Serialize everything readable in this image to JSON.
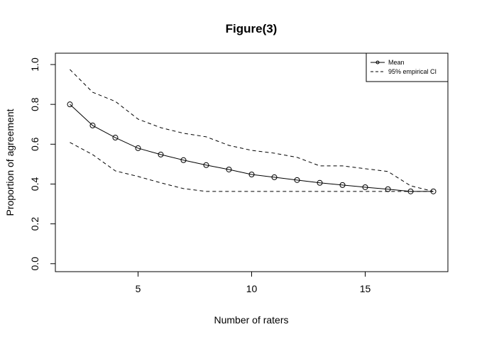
{
  "chart_data": {
    "type": "line",
    "title": "Figure(3)",
    "x_label": "Number of raters",
    "y_label": "Proportion of agreement",
    "x": [
      2,
      3,
      4,
      5,
      6,
      7,
      8,
      9,
      10,
      11,
      12,
      13,
      14,
      15,
      16,
      17,
      18
    ],
    "series": [
      {
        "name": "Mean",
        "color": "#000000",
        "style": "solid",
        "markers": true,
        "values": [
          0.8,
          0.694,
          0.633,
          0.58,
          0.548,
          0.52,
          0.495,
          0.473,
          0.448,
          0.434,
          0.42,
          0.406,
          0.395,
          0.384,
          0.374,
          0.363,
          0.363
        ]
      },
      {
        "name": "95% empirical CI",
        "color": "#000000",
        "style": "dashed",
        "markers": false,
        "upper": [
          0.975,
          0.861,
          0.815,
          0.726,
          0.683,
          0.655,
          0.637,
          0.594,
          0.569,
          0.555,
          0.534,
          0.491,
          0.491,
          0.477,
          0.463,
          0.391,
          0.363
        ],
        "lower": [
          0.609,
          0.548,
          0.466,
          0.438,
          0.406,
          0.377,
          0.363,
          0.363,
          0.363,
          0.363,
          0.363,
          0.363,
          0.363,
          0.363,
          0.363,
          0.363,
          0.363
        ]
      }
    ],
    "xlim": [
      1.36,
      18.64
    ],
    "xticks": [
      5,
      10,
      15
    ],
    "ylim": [
      -0.04,
      1.057
    ],
    "yticks": [
      {
        "value": 0,
        "label": "0.0"
      },
      {
        "value": 0.2,
        "label": "0.2"
      },
      {
        "value": 0.4,
        "label": "0.4"
      },
      {
        "value": 0.6,
        "label": "0.6"
      },
      {
        "value": 0.8,
        "label": "0.8"
      },
      {
        "value": 1,
        "label": "1.0"
      }
    ],
    "legend": "top-right",
    "grid": false
  }
}
